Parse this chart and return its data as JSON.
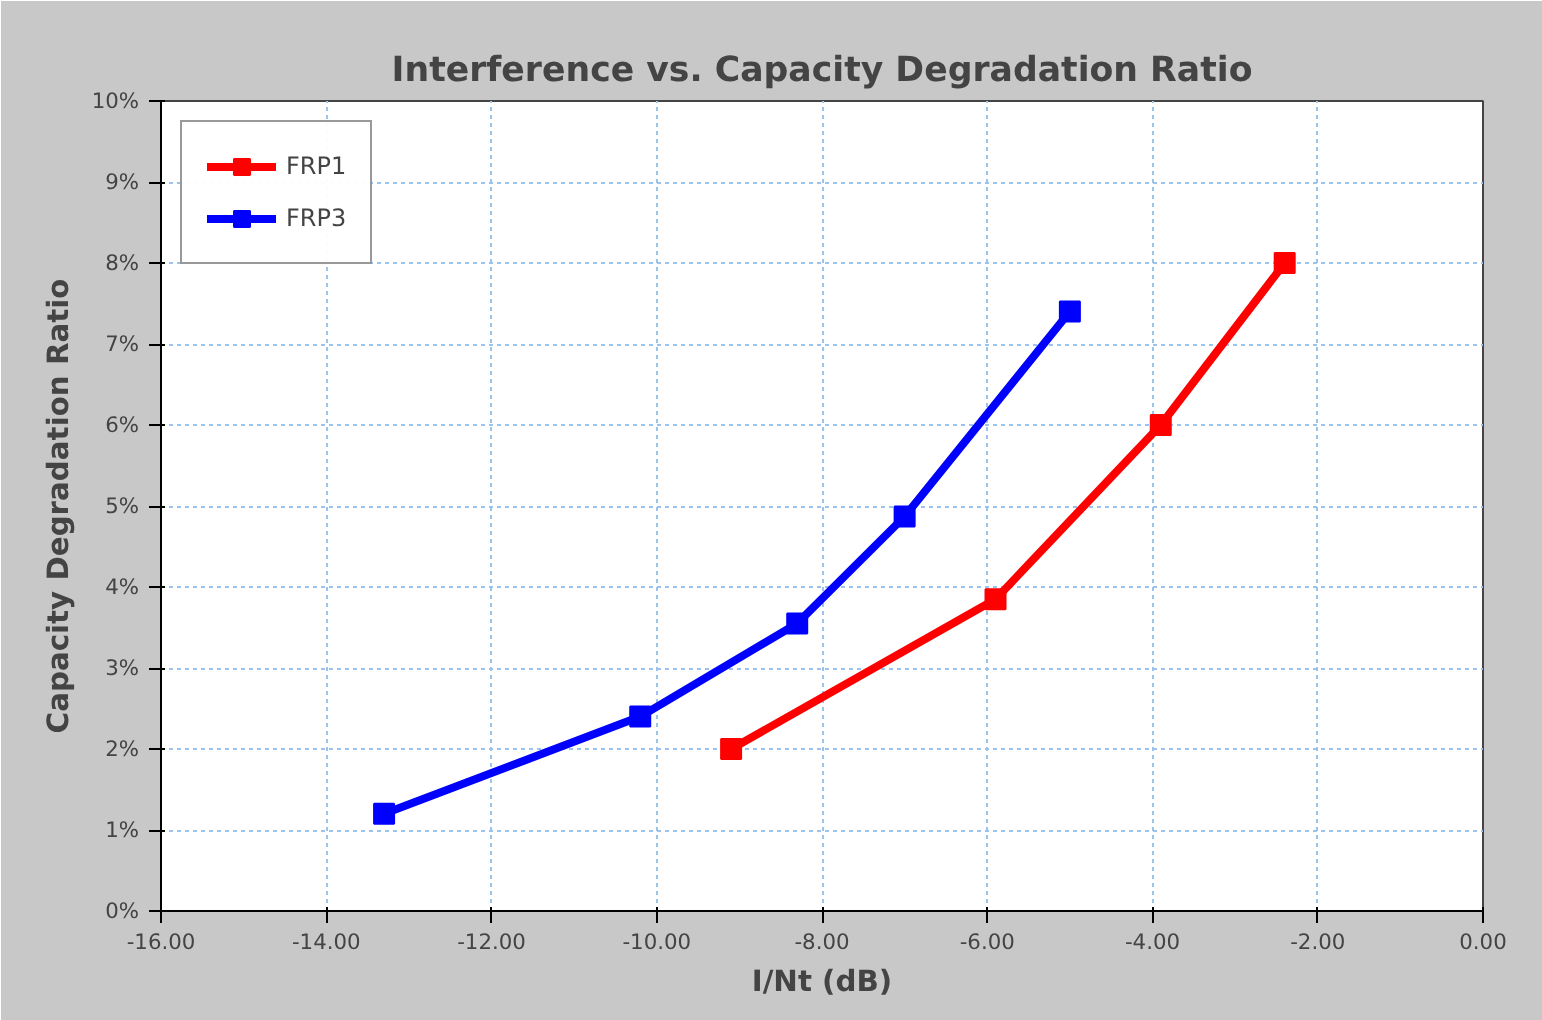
{
  "chart_data": {
    "type": "line",
    "title": "Interference vs. Capacity Degradation Ratio",
    "xlabel": "I/Nt (dB)",
    "ylabel": "Capacity Degradation Ratio",
    "series": [
      {
        "name": "FRP1",
        "color": "#ff0000",
        "x": [
          -9.1,
          -5.9,
          -3.9,
          -2.4
        ],
        "values": [
          2.0,
          3.85,
          6.0,
          8.0
        ]
      },
      {
        "name": "FRP3",
        "color": "#0000ff",
        "x": [
          -13.3,
          -10.2,
          -8.3,
          -7.0,
          -5.0
        ],
        "values": [
          1.2,
          2.4,
          3.55,
          4.87,
          7.4
        ]
      }
    ],
    "xlim": [
      -16,
      0
    ],
    "ylim": [
      0,
      10
    ],
    "xticks": [
      {
        "value": -16,
        "label": "-16.00"
      },
      {
        "value": -14,
        "label": "-14.00"
      },
      {
        "value": -12,
        "label": "-12.00"
      },
      {
        "value": -10,
        "label": "-10.00"
      },
      {
        "value": -8,
        "label": "-8.00"
      },
      {
        "value": -6,
        "label": "-6.00"
      },
      {
        "value": -4,
        "label": "-4.00"
      },
      {
        "value": -2,
        "label": "-2.00"
      },
      {
        "value": 0,
        "label": "0.00"
      }
    ],
    "yticks": [
      {
        "value": 0,
        "label": "0%"
      },
      {
        "value": 1,
        "label": "1%"
      },
      {
        "value": 2,
        "label": "2%"
      },
      {
        "value": 3,
        "label": "3%"
      },
      {
        "value": 4,
        "label": "4%"
      },
      {
        "value": 5,
        "label": "5%"
      },
      {
        "value": 6,
        "label": "6%"
      },
      {
        "value": 7,
        "label": "7%"
      },
      {
        "value": 8,
        "label": "8%"
      },
      {
        "value": 9,
        "label": "9%"
      },
      {
        "value": 10,
        "label": "10%"
      }
    ],
    "grid": true,
    "legend": "top left",
    "marker": "square",
    "line_style": "solid"
  }
}
